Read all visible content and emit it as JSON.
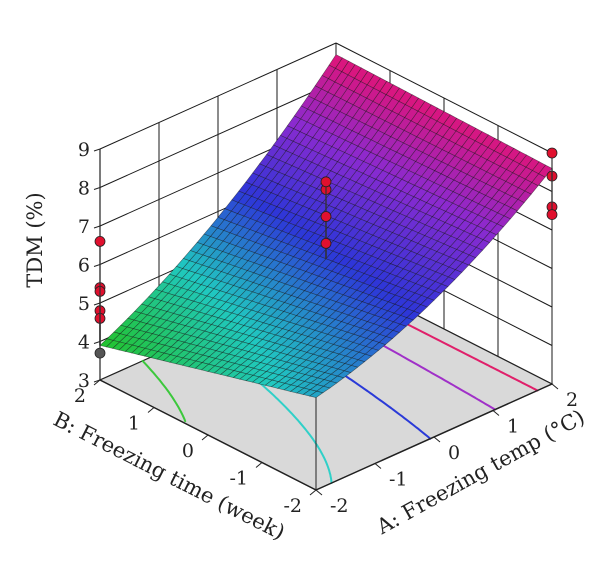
{
  "chart_data": {
    "type": "surface3d",
    "zlabel": "TDM (%)",
    "xlabel": "A: Freezing temp (°C)",
    "ylabel": "B: Freezing time (week)",
    "xlim": [
      -2,
      2
    ],
    "ylim": [
      -2,
      2
    ],
    "zlim": [
      3,
      9
    ],
    "x_ticks": [
      "-2",
      "-1",
      "0",
      "1",
      "2"
    ],
    "y_ticks": [
      "-2",
      "-1",
      "0",
      "1",
      "2"
    ],
    "z_ticks": [
      "3",
      "4",
      "5",
      "6",
      "7",
      "8",
      "9"
    ],
    "surface_corners": [
      {
        "x": -2,
        "y": -2,
        "z": 5.4
      },
      {
        "x": 2,
        "y": -2,
        "z": 8.6
      },
      {
        "x": 2,
        "y": 2,
        "z": 8.7
      },
      {
        "x": -2,
        "y": 2,
        "z": 3.9
      }
    ],
    "surface_colormap": [
      "#22c22a",
      "#20c8c0",
      "#2d36d8",
      "#8a2ad0",
      "#e01478"
    ],
    "contour_levels": [
      4.5,
      5.5,
      6.5,
      7.5,
      8.3
    ],
    "contour_colors": [
      "#3cc83c",
      "#30d0c8",
      "#2a3ad8",
      "#a030c8",
      "#e01f6a"
    ],
    "floor_color": "#d9d9d9",
    "design_points": [
      {
        "x": -2,
        "y": 2,
        "z": 4.8,
        "above": true
      },
      {
        "x": -2,
        "y": 2,
        "z": 4.6,
        "above": true
      },
      {
        "x": -2,
        "y": 2,
        "z": 3.7,
        "above": false
      },
      {
        "x": -2,
        "y": 2,
        "z": 5.4,
        "above": true
      },
      {
        "x": -2,
        "y": 2,
        "z": 5.3,
        "above": true
      },
      {
        "x": -2,
        "y": 2,
        "z": 6.6,
        "above": true
      },
      {
        "x": 0,
        "y": 0,
        "z": 8.0,
        "above": true
      },
      {
        "x": 0,
        "y": 0,
        "z": 8.2,
        "above": true
      },
      {
        "x": 0,
        "y": 0,
        "z": 7.3,
        "above": true
      },
      {
        "x": 0,
        "y": 0,
        "z": 6.6,
        "above": true
      },
      {
        "x": 0,
        "y": 0,
        "z": 5.5,
        "above": false
      },
      {
        "x": 2,
        "y": -2,
        "z": 9.0,
        "above": true
      },
      {
        "x": 2,
        "y": -2,
        "z": 8.4,
        "above": true
      },
      {
        "x": 2,
        "y": -2,
        "z": 7.6,
        "above": true
      },
      {
        "x": 2,
        "y": -2,
        "z": 7.4,
        "above": true
      }
    ]
  }
}
